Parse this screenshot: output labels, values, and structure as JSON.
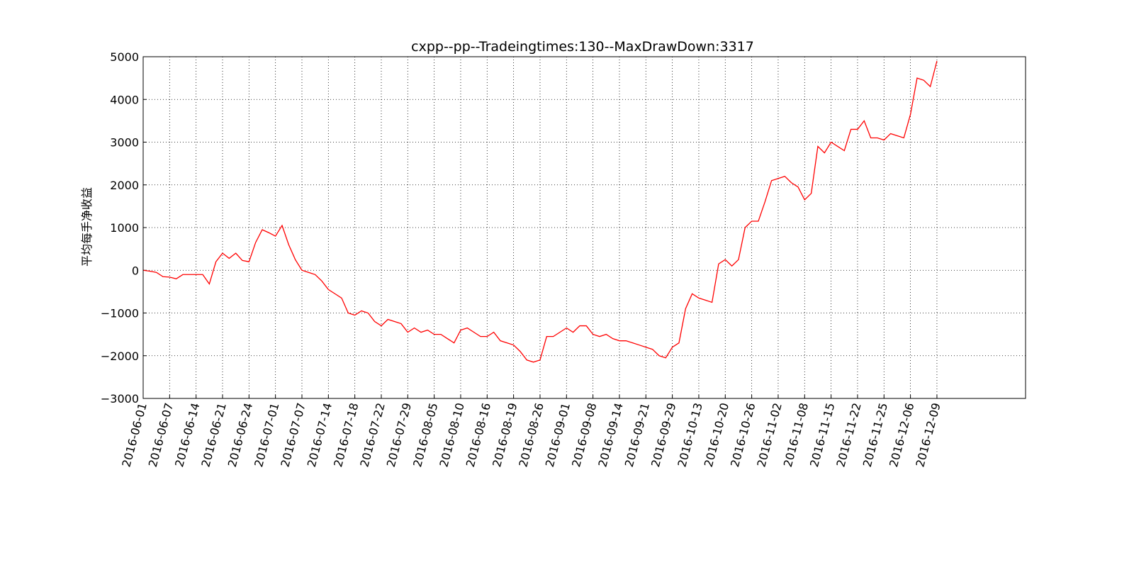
{
  "chart_data": {
    "type": "line",
    "title": "cxpp--pp--Tradeingtimes:130--MaxDrawDown:3317",
    "y_label": "平均每手净收益",
    "x": [
      0,
      2.5,
      5,
      7.5,
      10,
      12.5,
      15,
      17.5,
      20,
      22.5,
      25,
      27.5,
      30,
      32.5,
      35,
      37.5,
      40,
      42.5,
      45,
      47.5,
      50,
      52.5,
      55,
      57.5,
      60,
      62.5,
      65,
      67.5,
      70,
      72.5,
      75,
      77.5,
      80,
      82.5,
      85,
      87.5,
      90,
      92.5,
      95,
      97.5,
      100,
      102.5,
      105,
      107.5,
      110,
      112.5,
      115,
      117.5,
      120,
      122.5,
      125,
      127.5,
      130,
      132.5,
      135,
      137.5,
      140,
      142.5,
      145,
      147.5,
      150,
      152.5,
      155,
      157.5,
      160,
      162.5,
      165,
      167.5,
      170,
      172.5,
      175,
      177.5,
      180,
      182.5,
      185,
      187.5,
      190,
      192.5,
      195,
      197.5,
      200,
      202.5,
      205,
      207.5,
      210,
      212.5,
      215,
      217.5,
      220,
      222.5,
      225,
      227.5,
      230,
      232.5,
      235,
      237.5,
      240,
      242.5,
      245,
      247.5,
      250,
      252.5,
      255,
      257.5,
      260,
      262.5,
      265,
      267.5,
      270,
      272.5,
      275,
      277.5,
      280,
      282.5,
      285,
      287.5,
      290,
      292.5,
      295,
      297.5,
      300
    ],
    "series": [
      {
        "name": "pp",
        "color": "#ff0000",
        "values": [
          0,
          -20,
          -50,
          -150,
          -160,
          -200,
          -100,
          -100,
          -100,
          -100,
          -320,
          200,
          400,
          280,
          400,
          230,
          200,
          650,
          950,
          880,
          800,
          1050,
          600,
          250,
          0,
          -50,
          -100,
          -250,
          -450,
          -550,
          -650,
          -1000,
          -1050,
          -950,
          -1000,
          -1200,
          -1300,
          -1150,
          -1200,
          -1250,
          -1450,
          -1350,
          -1450,
          -1400,
          -1500,
          -1500,
          -1600,
          -1700,
          -1400,
          -1350,
          -1450,
          -1550,
          -1550,
          -1450,
          -1650,
          -1700,
          -1750,
          -1900,
          -2100,
          -2150,
          -2100,
          -1550,
          -1550,
          -1450,
          -1350,
          -1450,
          -1300,
          -1300,
          -1500,
          -1550,
          -1500,
          -1600,
          -1650,
          -1650,
          -1700,
          -1750,
          -1800,
          -1850,
          -2000,
          -2050,
          -1800,
          -1700,
          -900,
          -550,
          -650,
          -700,
          -750,
          150,
          250,
          100,
          250,
          1000,
          1150,
          1150,
          1600,
          2100,
          2150,
          2200,
          2050,
          1950,
          1650,
          1800,
          2900,
          2750,
          3000,
          2900,
          2800,
          3300,
          3300,
          3500,
          3100,
          3100,
          3050,
          3200,
          3150,
          3100,
          3650,
          4500,
          4450,
          4300,
          4900
        ]
      }
    ],
    "xlim": [
      0,
      333.5
    ],
    "xticks": [
      {
        "value": 0,
        "label": "2016-06-01"
      },
      {
        "value": 10,
        "label": "2016-06-07"
      },
      {
        "value": 20,
        "label": "2016-06-14"
      },
      {
        "value": 30,
        "label": "2016-06-21"
      },
      {
        "value": 40,
        "label": "2016-06-24"
      },
      {
        "value": 50,
        "label": "2016-07-01"
      },
      {
        "value": 60,
        "label": "2016-07-07"
      },
      {
        "value": 70,
        "label": "2016-07-14"
      },
      {
        "value": 80,
        "label": "2016-07-18"
      },
      {
        "value": 90,
        "label": "2016-07-22"
      },
      {
        "value": 100,
        "label": "2016-07-29"
      },
      {
        "value": 110,
        "label": "2016-08-05"
      },
      {
        "value": 120,
        "label": "2016-08-10"
      },
      {
        "value": 130,
        "label": "2016-08-16"
      },
      {
        "value": 140,
        "label": "2016-08-19"
      },
      {
        "value": 150,
        "label": "2016-08-26"
      },
      {
        "value": 160,
        "label": "2016-09-01"
      },
      {
        "value": 170,
        "label": "2016-09-08"
      },
      {
        "value": 180,
        "label": "2016-09-14"
      },
      {
        "value": 190,
        "label": "2016-09-21"
      },
      {
        "value": 200,
        "label": "2016-09-29"
      },
      {
        "value": 210,
        "label": "2016-10-13"
      },
      {
        "value": 220,
        "label": "2016-10-20"
      },
      {
        "value": 230,
        "label": "2016-10-26"
      },
      {
        "value": 240,
        "label": "2016-11-02"
      },
      {
        "value": 250,
        "label": "2016-11-08"
      },
      {
        "value": 260,
        "label": "2016-11-15"
      },
      {
        "value": 270,
        "label": "2016-11-22"
      },
      {
        "value": 280,
        "label": "2016-11-25"
      },
      {
        "value": 290,
        "label": "2016-12-06"
      },
      {
        "value": 300,
        "label": "2016-12-09"
      }
    ],
    "ylim": [
      -3000,
      5000
    ],
    "yticks": [
      {
        "value": -3000,
        "label": "−3000"
      },
      {
        "value": -2000,
        "label": "−2000"
      },
      {
        "value": -1000,
        "label": "−1000"
      },
      0,
      1000,
      2000,
      3000,
      4000,
      5000
    ],
    "grid": true
  }
}
